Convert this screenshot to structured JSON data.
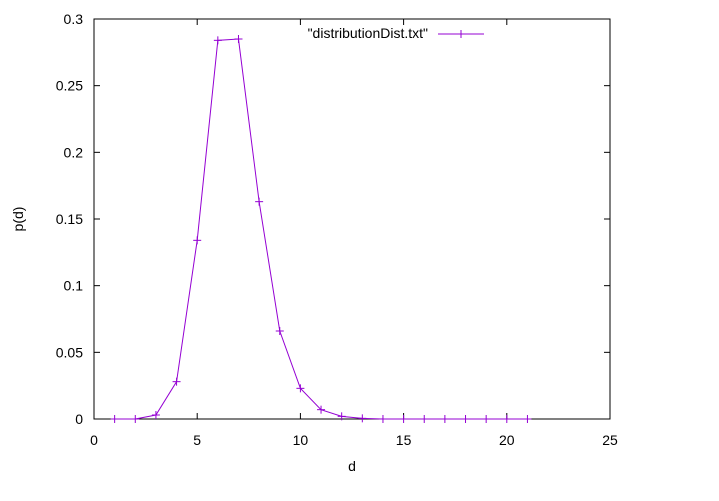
{
  "chart_data": {
    "type": "line",
    "title": "",
    "xlabel": "d",
    "ylabel": "p(d)",
    "xlim": [
      0,
      25
    ],
    "ylim": [
      0,
      0.3
    ],
    "x_ticks": [
      "0",
      "5",
      "10",
      "15",
      "20",
      "25"
    ],
    "x_tick_values": [
      0,
      5,
      10,
      15,
      20,
      25
    ],
    "y_ticks": [
      "0",
      "0.05",
      "0.1",
      "0.15",
      "0.2",
      "0.25",
      "0.3"
    ],
    "y_tick_values": [
      0,
      0.05,
      0.1,
      0.15,
      0.2,
      0.25,
      0.3
    ],
    "grid": false,
    "legend_position": "top-right",
    "series": [
      {
        "name": "\"distributionDist.txt\"",
        "color": "#9400d3",
        "marker": "plus",
        "x": [
          1,
          2,
          3,
          4,
          5,
          6,
          7,
          8,
          9,
          10,
          11,
          12,
          13,
          14,
          15,
          16,
          17,
          18,
          19,
          20,
          21
        ],
        "y": [
          0.0,
          0.0,
          0.003,
          0.028,
          0.134,
          0.284,
          0.285,
          0.163,
          0.066,
          0.023,
          0.007,
          0.002,
          0.0005,
          0.0,
          0.0,
          0.0,
          0.0,
          0.0,
          0.0,
          0.0,
          0.0
        ]
      }
    ]
  }
}
